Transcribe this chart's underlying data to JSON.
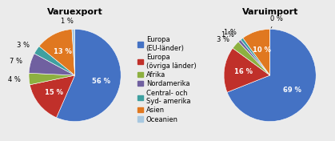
{
  "title_left": "Varuexport",
  "title_right": "Varuimport",
  "categories": [
    "Europa\n(EU-länder)",
    "Europa\n(övriga länder)",
    "Afrika",
    "Nordamerika",
    "Central- och\nSyd- amerika",
    "Asien",
    "Oceanien"
  ],
  "export_values": [
    56,
    15,
    4,
    7,
    3,
    13,
    1
  ],
  "import_values": [
    69,
    16,
    3,
    1,
    1,
    10,
    0
  ],
  "colors": [
    "#4472C4",
    "#C0302A",
    "#8DB040",
    "#7060A0",
    "#3FA0A0",
    "#E07820",
    "#A8C8E0"
  ],
  "background": "#EBEBEB",
  "title_fontsize": 8,
  "label_fontsize": 6,
  "legend_fontsize": 6
}
